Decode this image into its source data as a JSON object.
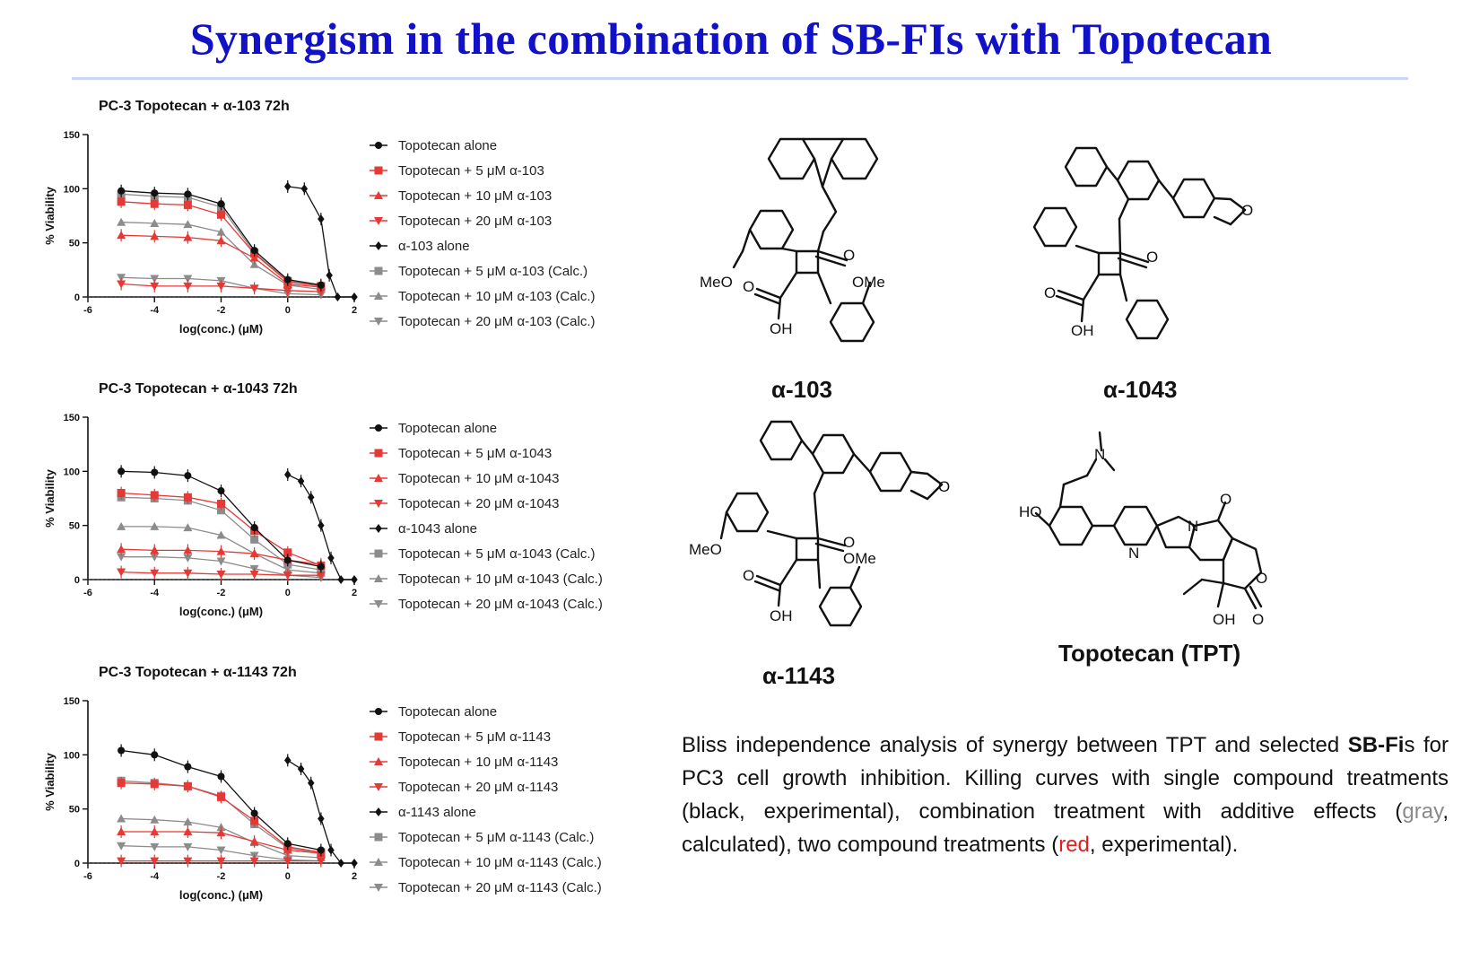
{
  "title": "Synergism in the combination of SB-FIs with Topotecan",
  "colors": {
    "title": "#1111c8",
    "black": "#111111",
    "red": "#e53935",
    "gray": "#8c8c8c"
  },
  "chart_data": [
    {
      "type": "line",
      "title": "PC-3 Topotecan + α-103 72h",
      "xlabel": "log(conc.) (μM)",
      "ylabel": "% Viability",
      "xlim": [
        -6,
        2
      ],
      "ylim": [
        0,
        150
      ],
      "xticks": [
        "-6",
        "-4",
        "-2",
        "0",
        "2"
      ],
      "yticks": [
        "0",
        "50",
        "100",
        "150"
      ],
      "x": [
        -5,
        -4,
        -3,
        -2,
        -1,
        0,
        1
      ],
      "series": [
        {
          "name": "Topotecan alone",
          "values": [
            98,
            96,
            95,
            86,
            43,
            16,
            11
          ]
        },
        {
          "name": "Topotecan + 5 μM α-103",
          "values": [
            88,
            86,
            85,
            76,
            40,
            14,
            10
          ]
        },
        {
          "name": "Topotecan + 10 μM α-103",
          "values": [
            57,
            56,
            55,
            52,
            36,
            12,
            9
          ]
        },
        {
          "name": "Topotecan + 20 μM α-103",
          "values": [
            12,
            10,
            10,
            10,
            8,
            6,
            5
          ]
        },
        {
          "name": "α-103 alone",
          "x": [
            0,
            0.5,
            1,
            1.25,
            1.5,
            2
          ],
          "values": [
            102,
            100,
            72,
            20,
            0,
            0
          ]
        },
        {
          "name": "Topotecan + 5 μM α-103 (Calc.)",
          "values": [
            95,
            93,
            92,
            83,
            41,
            15,
            10
          ]
        },
        {
          "name": "Topotecan + 10 μM α-103 (Calc.)",
          "values": [
            69,
            68,
            67,
            60,
            30,
            11,
            7
          ]
        },
        {
          "name": "Topotecan + 20 μM α-103 (Calc.)",
          "values": [
            18,
            17,
            17,
            15,
            8,
            3,
            2
          ]
        }
      ]
    },
    {
      "type": "line",
      "title": "PC-3 Topotecan + α-1043 72h",
      "xlabel": "log(conc.) (μM)",
      "ylabel": "% Viability",
      "xlim": [
        -6,
        2
      ],
      "ylim": [
        0,
        150
      ],
      "xticks": [
        "-6",
        "-4",
        "-2",
        "0",
        "2"
      ],
      "yticks": [
        "0",
        "50",
        "100",
        "150"
      ],
      "x": [
        -5,
        -4,
        -3,
        -2,
        -1,
        0,
        1
      ],
      "series": [
        {
          "name": "Topotecan alone",
          "values": [
            100,
            99,
            96,
            82,
            48,
            18,
            12
          ]
        },
        {
          "name": "Topotecan + 5 μM α-1043",
          "values": [
            80,
            78,
            76,
            70,
            45,
            25,
            13
          ]
        },
        {
          "name": "Topotecan + 10 μM α-1043",
          "values": [
            28,
            27,
            27,
            26,
            24,
            18,
            14
          ]
        },
        {
          "name": "Topotecan + 20 μM α-1043",
          "values": [
            7,
            6,
            6,
            5,
            5,
            4,
            4
          ]
        },
        {
          "name": "α-1043 alone",
          "x": [
            0,
            0.4,
            0.7,
            1,
            1.3,
            1.6,
            2
          ],
          "values": [
            97,
            91,
            76,
            50,
            20,
            0,
            0
          ]
        },
        {
          "name": "Topotecan + 5 μM α-1043 (Calc.)",
          "values": [
            76,
            75,
            73,
            64,
            37,
            14,
            9
          ]
        },
        {
          "name": "Topotecan + 10 μM α-1043 (Calc.)",
          "values": [
            49,
            49,
            48,
            41,
            24,
            9,
            6
          ]
        },
        {
          "name": "Topotecan + 20 μM α-1043 (Calc.)",
          "values": [
            21,
            21,
            20,
            17,
            10,
            4,
            2
          ]
        }
      ]
    },
    {
      "type": "line",
      "title": "PC-3 Topotecan + α-1143 72h",
      "xlabel": "log(conc.) (μM)",
      "ylabel": "% Viability",
      "xlim": [
        -6,
        2
      ],
      "ylim": [
        0,
        150
      ],
      "xticks": [
        "-6",
        "-4",
        "-2",
        "0",
        "2"
      ],
      "yticks": [
        "0",
        "50",
        "100",
        "150"
      ],
      "x": [
        -5,
        -4,
        -3,
        -2,
        -1,
        0,
        1
      ],
      "series": [
        {
          "name": "Topotecan alone",
          "values": [
            104,
            100,
            89,
            80,
            46,
            18,
            12
          ]
        },
        {
          "name": "Topotecan + 5 μM α-1143",
          "values": [
            74,
            73,
            71,
            61,
            39,
            15,
            10
          ]
        },
        {
          "name": "Topotecan + 10 μM α-1143",
          "values": [
            29,
            29,
            29,
            28,
            20,
            12,
            9
          ]
        },
        {
          "name": "Topotecan + 20 μM α-1143",
          "values": [
            2,
            2,
            2,
            2,
            2,
            2,
            2
          ]
        },
        {
          "name": "α-1143 alone",
          "x": [
            0,
            0.4,
            0.7,
            1,
            1.3,
            1.6,
            2
          ],
          "values": [
            95,
            87,
            74,
            41,
            12,
            0,
            0
          ]
        },
        {
          "name": "Topotecan + 5 μM α-1143 (Calc.)",
          "values": [
            76,
            74,
            71,
            62,
            36,
            14,
            9
          ]
        },
        {
          "name": "Topotecan + 10 μM α-1143 (Calc.)",
          "values": [
            41,
            40,
            38,
            33,
            19,
            7,
            5
          ]
        },
        {
          "name": "Topotecan + 20 μM α-1143 (Calc.)",
          "values": [
            16,
            15,
            15,
            12,
            7,
            3,
            2
          ]
        }
      ]
    }
  ],
  "structures": {
    "labels": [
      "α-103",
      "α-1043",
      "α-1143",
      "Topotecan (TPT)"
    ],
    "atoms": {
      "meo": "MeO",
      "ome": "OMe",
      "oh": "OH",
      "o": "O",
      "n": "N",
      "ho": "HO"
    }
  },
  "caption": {
    "p1": "Bliss independence analysis of synergy between TPT and selected ",
    "bold": "SB-Fi",
    "p2": "s for PC3 cell growth inhibition. Killing curves with single compound treatments (black, experimental), combination treatment with additive effects (",
    "gray": "gray",
    "p3": ", calculated), two compound treatments (",
    "red": "red",
    "p4": ", experimental)."
  }
}
